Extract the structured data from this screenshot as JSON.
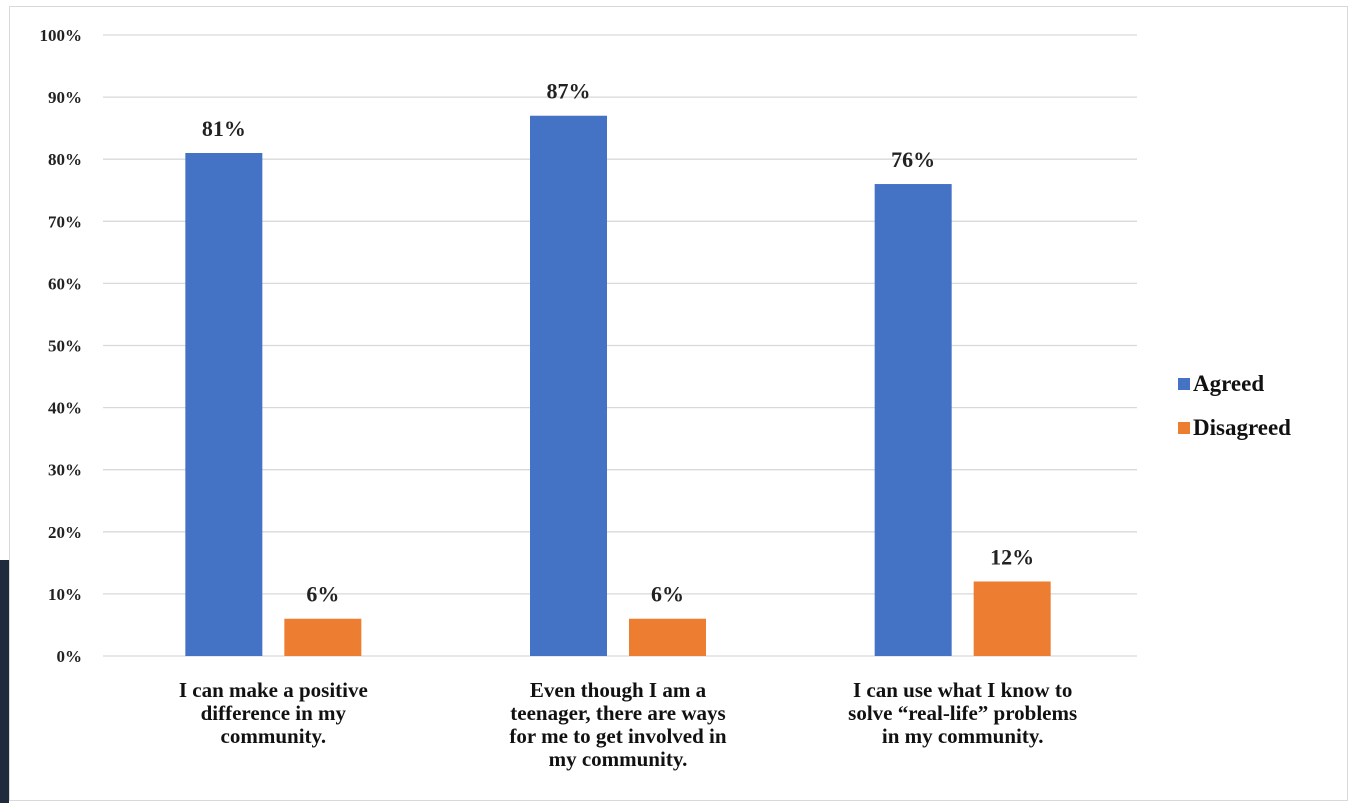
{
  "colors": {
    "agreed": "#4472C4",
    "disagreed": "#ED7D31",
    "grid": "#d9d9d9"
  },
  "legend": {
    "items": [
      {
        "label": "Agreed"
      },
      {
        "label": "Disagreed"
      }
    ]
  },
  "chart_data": {
    "type": "bar",
    "categories": [
      "I can make a positive difference in my community.",
      "Even though I am a teenager, there are ways for me to get involved in my community.",
      "I can use what I know to solve “real-life” problems in my community."
    ],
    "category_lines": [
      [
        "I can make a positive",
        "difference in my",
        "community."
      ],
      [
        "Even though I am a",
        "teenager, there are ways",
        "for me to get involved in",
        "my community."
      ],
      [
        "I can use what I know to",
        "solve “real-life” problems",
        "in my community."
      ]
    ],
    "series": [
      {
        "name": "Agreed",
        "values": [
          81,
          87,
          76
        ],
        "labels": [
          "81%",
          "87%",
          "76%"
        ]
      },
      {
        "name": "Disagreed",
        "values": [
          6,
          6,
          12
        ],
        "labels": [
          "6%",
          "6%",
          "12%"
        ]
      }
    ],
    "y_ticks": [
      "0%",
      "10%",
      "20%",
      "30%",
      "40%",
      "50%",
      "60%",
      "70%",
      "80%",
      "90%",
      "100%"
    ],
    "ylim": [
      0,
      100
    ],
    "grid": true,
    "legend_position": "right",
    "title": "",
    "xlabel": "",
    "ylabel": ""
  }
}
